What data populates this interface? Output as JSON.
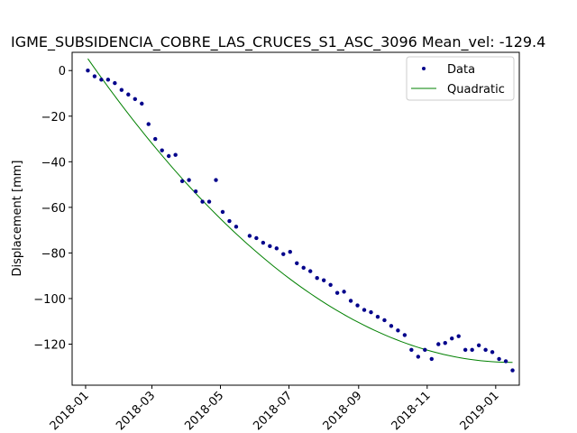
{
  "chart_data": {
    "type": "scatter",
    "title": "IGME_SUBSIDENCIA_COBRE_LAS_CRUCES_S1_ASC_3096     Mean_vel: -129.4",
    "xlabel": "",
    "ylabel": "Displacement [mm]",
    "xlim": [
      "2017-12-20",
      "2019-01-22"
    ],
    "ylim": [
      -138,
      8
    ],
    "x_ticks": [
      "2018-01",
      "2018-03",
      "2018-05",
      "2018-07",
      "2018-09",
      "2018-11",
      "2019-01"
    ],
    "y_ticks": [
      0,
      -20,
      -40,
      -60,
      -80,
      -100,
      -120
    ],
    "legend": {
      "position": "upper right",
      "entries": [
        "Data",
        "Quadratic"
      ]
    },
    "grid": false,
    "colors": {
      "data": "#00008b",
      "fit": "#008000"
    },
    "series": [
      {
        "name": "Data",
        "style": "points",
        "x": [
          "2018-01-03",
          "2018-01-09",
          "2018-01-15",
          "2018-01-21",
          "2018-01-27",
          "2018-02-02",
          "2018-02-08",
          "2018-02-14",
          "2018-02-20",
          "2018-02-26",
          "2018-03-04",
          "2018-03-10",
          "2018-03-16",
          "2018-03-22",
          "2018-03-28",
          "2018-04-03",
          "2018-04-09",
          "2018-04-15",
          "2018-04-21",
          "2018-04-27",
          "2018-05-03",
          "2018-05-09",
          "2018-05-15",
          "2018-05-27",
          "2018-06-02",
          "2018-06-08",
          "2018-06-14",
          "2018-06-20",
          "2018-06-26",
          "2018-07-02",
          "2018-07-08",
          "2018-07-14",
          "2018-07-20",
          "2018-07-26",
          "2018-08-01",
          "2018-08-07",
          "2018-08-13",
          "2018-08-19",
          "2018-08-25",
          "2018-08-31",
          "2018-09-06",
          "2018-09-12",
          "2018-09-18",
          "2018-09-24",
          "2018-09-30",
          "2018-10-06",
          "2018-10-12",
          "2018-10-18",
          "2018-10-24",
          "2018-10-30",
          "2018-11-05",
          "2018-11-11",
          "2018-11-17",
          "2018-11-23",
          "2018-11-29",
          "2018-12-05",
          "2018-12-11",
          "2018-12-17",
          "2018-12-23",
          "2018-12-29",
          "2019-01-04",
          "2019-01-10",
          "2019-01-16"
        ],
        "y": [
          0,
          -2.5,
          -4,
          -4,
          -5.5,
          -8.5,
          -10.5,
          -12.5,
          -14.5,
          -23.5,
          -30,
          -35,
          -37.5,
          -37,
          -48.5,
          -48,
          -53,
          -57.5,
          -57.5,
          -48,
          -62,
          -66,
          -68.5,
          -72.5,
          -73.5,
          -75.5,
          -77,
          -78,
          -80.5,
          -79.5,
          -84.5,
          -86.5,
          -88,
          -91,
          -92,
          -94,
          -97.5,
          -97,
          -101,
          -103,
          -105,
          -106,
          -108,
          -109.5,
          -112,
          -114,
          -116,
          -122.5,
          -125.5,
          -122.5,
          -126.5,
          -120,
          -119.5,
          -117.5,
          -116.5,
          -122.5,
          -122.5,
          -120.5,
          -122.5,
          -123.5,
          -126.5,
          -127.5,
          -131.5
        ]
      },
      {
        "name": "Quadratic",
        "style": "line",
        "x_start": "2018-01-03",
        "x_end": "2019-01-16",
        "y_start": 5.2,
        "y_end": -128.0,
        "vertex_date": "2019-01-16"
      }
    ]
  }
}
